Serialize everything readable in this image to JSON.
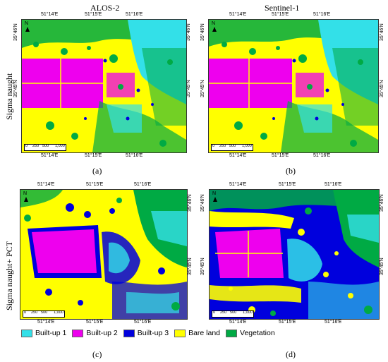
{
  "columns": {
    "left_title": "ALOS-2",
    "right_title": "Sentinel-1"
  },
  "rows": {
    "top_label": "Sigma naught",
    "bottom_label": "Sigma naught+ PCT"
  },
  "coords": {
    "top_lon": [
      "51°14′E",
      "51°15′E",
      "51°16′E"
    ],
    "bottom_lon": [
      "51°14′E",
      "51°15′E",
      "51°16′E"
    ],
    "lat": [
      "35°46′N",
      "35°45′N"
    ]
  },
  "north_label": "N",
  "scale": {
    "l0": "0",
    "l1": "250",
    "l2": "500",
    "l3": "1,000"
  },
  "captions": [
    "(a)",
    "(b)",
    "(c)",
    "(d)"
  ],
  "legend": [
    {
      "label": "Built-up 1",
      "color": "#33e0e8"
    },
    {
      "label": "Built-up 2",
      "color": "#ee00ee"
    },
    {
      "label": "Built-up 3",
      "color": "#0000dd"
    },
    {
      "label": "Bare land",
      "color": "#ffff00"
    },
    {
      "label": "Vegetation",
      "color": "#00aa44"
    }
  ]
}
